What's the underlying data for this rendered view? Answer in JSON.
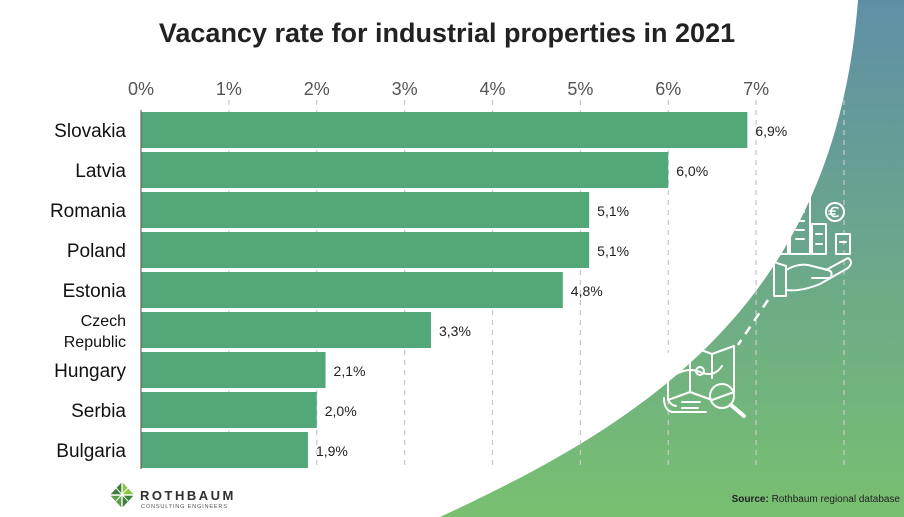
{
  "chart_data": {
    "type": "bar",
    "orientation": "horizontal",
    "title": "Vacancy rate for industrial properties in 2021",
    "categories": [
      "Slovakia",
      "Latvia",
      "Romania",
      "Poland",
      "Estonia",
      "Czech Republic",
      "Hungary",
      "Serbia",
      "Bulgaria"
    ],
    "category_lines": [
      [
        "Slovakia"
      ],
      [
        "Latvia"
      ],
      [
        "Romania"
      ],
      [
        "Poland"
      ],
      [
        "Estonia"
      ],
      [
        "Czech",
        "Republic"
      ],
      [
        "Hungary"
      ],
      [
        "Serbia"
      ],
      [
        "Bulgaria"
      ]
    ],
    "values": [
      6.9,
      6.0,
      5.1,
      5.1,
      4.8,
      3.3,
      2.1,
      2.0,
      1.9
    ],
    "value_labels": [
      "6,9%",
      "6,0%",
      "5,1%",
      "5,1%",
      "4,8%",
      "3,3%",
      "2,1%",
      "2,0%",
      "1,9%"
    ],
    "xlim": [
      0,
      8
    ],
    "ticks": [
      0,
      1,
      2,
      3,
      4,
      5,
      6,
      7
    ],
    "tick_labels": [
      "0%",
      "1%",
      "2%",
      "3%",
      "4%",
      "5%",
      "6%",
      "7%"
    ],
    "xaxis_position": "top",
    "grid": "vertical dashed",
    "xlabel": "",
    "ylabel": "",
    "bar_color": "#52a878"
  },
  "brand": {
    "name": "ROTHBAUM",
    "subtitle": "CONSULTING ENGINEERS"
  },
  "source": {
    "label": "Source:",
    "text": " Rothbaum regional database"
  },
  "decor": {
    "arc_color_top": "#5f8fa6",
    "arc_color_bottom": "#78c070",
    "icon_color": "#ffffff"
  }
}
